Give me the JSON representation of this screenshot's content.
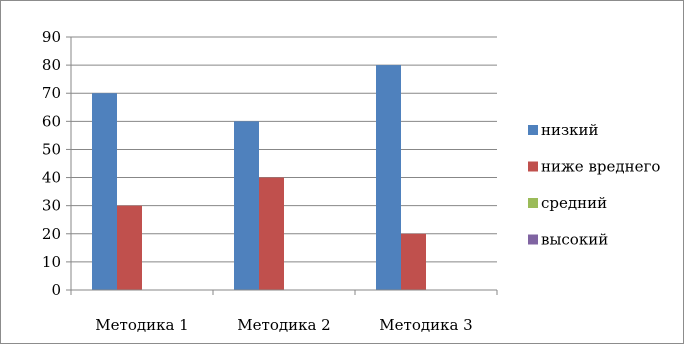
{
  "chart_data": {
    "type": "bar",
    "categories": [
      "Методика 1",
      "Методика 2",
      "Методика 3"
    ],
    "series": [
      {
        "name": "низкий",
        "values": [
          70,
          60,
          80
        ],
        "color": "#4f81bd"
      },
      {
        "name": "ниже вреднего",
        "values": [
          30,
          40,
          20
        ],
        "color": "#c0504d"
      },
      {
        "name": "средний",
        "values": [
          0,
          0,
          0
        ],
        "color": "#9bbb59"
      },
      {
        "name": "высокий",
        "values": [
          0,
          0,
          0
        ],
        "color": "#8064a2"
      }
    ],
    "ylim": [
      0,
      90
    ],
    "yticks": [
      "0",
      "10",
      "20",
      "30",
      "40",
      "50",
      "60",
      "70",
      "80",
      "90"
    ],
    "grid": true,
    "legend_position": "right",
    "title": "",
    "xlabel": "",
    "ylabel": ""
  }
}
